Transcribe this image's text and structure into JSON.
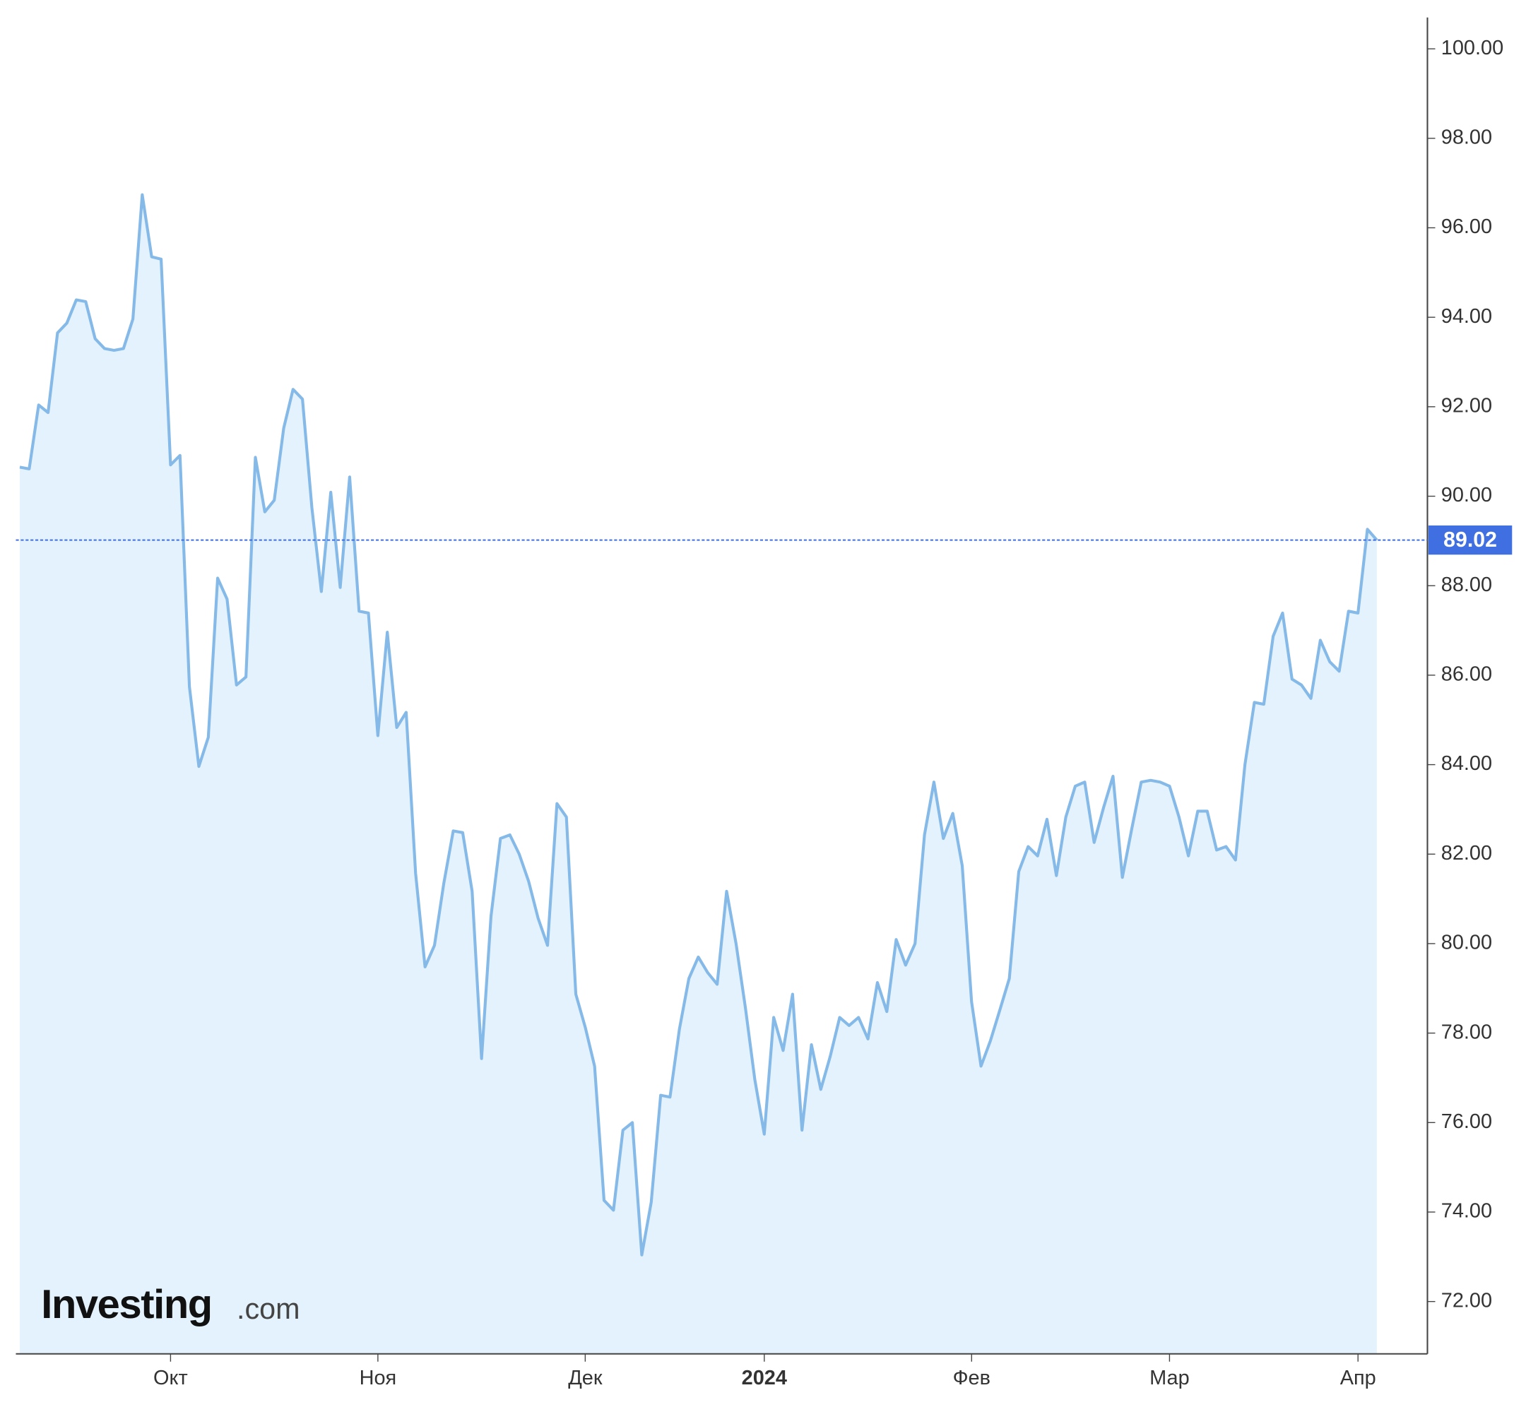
{
  "chart_data": {
    "type": "area",
    "logo": [
      "Investing",
      ".com"
    ],
    "categories": [
      null,
      null,
      null,
      null,
      null,
      null,
      null,
      null,
      null,
      null,
      null,
      null,
      null,
      null,
      null,
      null,
      "Окт",
      null,
      null,
      null,
      null,
      null,
      null,
      null,
      null,
      null,
      null,
      null,
      null,
      null,
      null,
      null,
      null,
      null,
      null,
      null,
      null,
      null,
      "Ноя",
      null,
      null,
      null,
      null,
      null,
      null,
      null,
      null,
      null,
      null,
      null,
      null,
      null,
      null,
      null,
      null,
      null,
      null,
      null,
      null,
      null,
      "Дек",
      null,
      null,
      null,
      null,
      null,
      null,
      null,
      null,
      null,
      null,
      null,
      null,
      null,
      null,
      null,
      null,
      null,
      null,
      "2024",
      null,
      null,
      null,
      null,
      null,
      null,
      null,
      null,
      null,
      null,
      null,
      null,
      null,
      null,
      null,
      null,
      null,
      null,
      null,
      null,
      null,
      "Фев",
      null,
      null,
      null,
      null,
      null,
      null,
      null,
      null,
      null,
      null,
      null,
      null,
      null,
      null,
      null,
      null,
      null,
      null,
      null,
      null,
      "Мар",
      null,
      null,
      null,
      null,
      null,
      null,
      null,
      null,
      null,
      null,
      null,
      null,
      null,
      null,
      null,
      null,
      null,
      null,
      null,
      "Апр",
      null,
      null
    ],
    "values": [
      90.65,
      90.61,
      92.04,
      91.87,
      93.65,
      93.87,
      94.39,
      94.35,
      93.52,
      93.3,
      93.26,
      93.3,
      93.96,
      96.74,
      95.35,
      95.3,
      90.7,
      90.91,
      85.74,
      83.96,
      84.61,
      88.17,
      87.7,
      85.78,
      85.96,
      90.87,
      89.65,
      89.91,
      91.52,
      92.39,
      92.17,
      89.74,
      87.87,
      90.09,
      87.96,
      90.43,
      87.43,
      87.39,
      84.65,
      86.96,
      84.83,
      85.17,
      81.57,
      79.48,
      79.96,
      81.35,
      82.52,
      82.48,
      81.17,
      77.43,
      80.61,
      82.35,
      82.43,
      82.0,
      81.39,
      80.57,
      79.96,
      83.13,
      82.83,
      78.87,
      78.13,
      77.26,
      74.26,
      74.04,
      75.83,
      76.0,
      73.04,
      74.22,
      76.61,
      76.57,
      78.09,
      79.22,
      79.7,
      79.35,
      79.09,
      81.17,
      80.0,
      78.57,
      76.96,
      75.74,
      78.35,
      77.61,
      78.87,
      75.83,
      77.74,
      76.74,
      77.48,
      78.35,
      78.17,
      78.35,
      77.87,
      79.13,
      78.48,
      80.09,
      79.52,
      80.0,
      82.43,
      83.61,
      82.35,
      82.91,
      81.74,
      78.7,
      77.26,
      77.83,
      78.52,
      79.22,
      81.61,
      82.17,
      81.96,
      82.78,
      81.52,
      82.83,
      83.52,
      83.61,
      82.26,
      83.04,
      83.74,
      81.48,
      82.57,
      83.61,
      83.65,
      83.61,
      83.52,
      82.83,
      81.96,
      82.96,
      82.96,
      82.09,
      82.17,
      81.87,
      84.0,
      85.39,
      85.35,
      86.87,
      87.39,
      85.91,
      85.78,
      85.48,
      86.78,
      86.3,
      86.09,
      87.43,
      87.39,
      89.26,
      89.02
    ],
    "color": "#85b9e8",
    "fill": "#e3f2fc",
    "last_color": "#3f6fe0",
    "ylim": [
      70.83,
      100.7
    ],
    "yticks": [
      {
        "value": 72,
        "label": "72.00"
      },
      {
        "value": 74,
        "label": "74.00"
      },
      {
        "value": 76,
        "label": "76.00"
      },
      {
        "value": 78,
        "label": "78.00"
      },
      {
        "value": 80,
        "label": "80.00"
      },
      {
        "value": 82,
        "label": "82.00"
      },
      {
        "value": 84,
        "label": "84.00"
      },
      {
        "value": 86,
        "label": "86.00"
      },
      {
        "value": 88,
        "label": "88.00"
      },
      {
        "value": 90,
        "label": "90.00"
      },
      {
        "value": 92,
        "label": "92.00"
      },
      {
        "value": 94,
        "label": "94.00"
      },
      {
        "value": 96,
        "label": "96.00"
      },
      {
        "value": 98,
        "label": "98.00"
      },
      {
        "value": 100,
        "label": "100.00"
      }
    ],
    "grid": false
  }
}
